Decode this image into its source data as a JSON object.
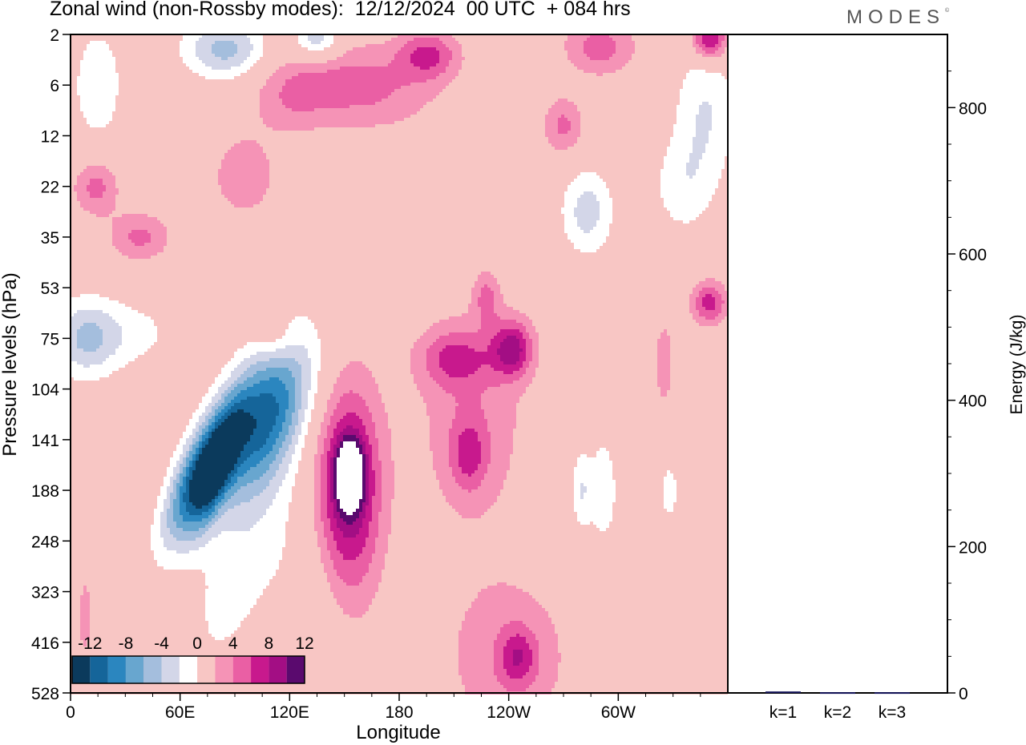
{
  "header": {
    "title": "Zonal wind (non-Rossby modes):  12/12/2024  00 UTC  + 084 hrs",
    "brand": "MODES",
    "brand_mark": "©"
  },
  "colors": {
    "neg": [
      "#0b3a5c",
      "#15659a",
      "#2b86bf",
      "#68a6cf",
      "#a4bedd",
      "#d3d6e8"
    ],
    "zero": "#ffffff",
    "pos": [
      "#f8c6c4",
      "#f593b6",
      "#ea5fa4",
      "#c8198d",
      "#a30e84",
      "#5a0a6e"
    ]
  },
  "chart_data": [
    {
      "type": "heatmap",
      "title": "Zonal wind (non-Rossby modes):  12/12/2024  00 UTC  + 084 hrs",
      "xlabel": "Longitude",
      "ylabel": "Pressure levels (hPa)",
      "x_ticks": [
        "0",
        "60E",
        "120E",
        "180",
        "120W",
        "60W"
      ],
      "x_tick_values": [
        0,
        60,
        120,
        180,
        240,
        300
      ],
      "x_range": [
        0,
        360
      ],
      "y_ticks": [
        "2",
        "6",
        "12",
        "22",
        "35",
        "53",
        "75",
        "104",
        "141",
        "188",
        "248",
        "323",
        "416",
        "528"
      ],
      "colorbar": {
        "labels": [
          "-12",
          "-8",
          "-4",
          "0",
          "4",
          "8",
          "12"
        ],
        "levels": [
          -14,
          -12,
          -10,
          -8,
          -6,
          -4,
          -2,
          2,
          4,
          6,
          8,
          10,
          12,
          14
        ]
      },
      "features": [
        {
          "lon": 105,
          "lev": 7.6,
          "lon_half": 16,
          "lev_half": 1.1,
          "peak": -13,
          "tilt": -0.45
        },
        {
          "lon": 68,
          "lev": 8.8,
          "lon_half": 9,
          "lev_half": 0.9,
          "peak": -11,
          "tilt": -0.5
        },
        {
          "lon": 80,
          "lev": 8.6,
          "lon_half": 7,
          "lev_half": 0.9,
          "peak": -9,
          "tilt": -0.4
        },
        {
          "lon": 92,
          "lev": 10.6,
          "lon_half": 15,
          "lev_half": 1.5,
          "peak": -3,
          "tilt": -0.4
        },
        {
          "lon": 130,
          "lev": 11.2,
          "lon_half": 14,
          "lev_half": 1.6,
          "peak": -2,
          "tilt": 0
        },
        {
          "lon": 8,
          "lev": 6.0,
          "lon_half": 13,
          "lev_half": 0.55,
          "peak": -6,
          "tilt": 0
        },
        {
          "lon": 85,
          "lev": 0.3,
          "lon_half": 16,
          "lev_half": 0.4,
          "peak": -7,
          "tilt": 0
        },
        {
          "lon": 135,
          "lev": 0.1,
          "lon_half": 9,
          "lev_half": 0.3,
          "peak": -6,
          "tilt": 0
        },
        {
          "lon": 283,
          "lev": 3.5,
          "lon_half": 10,
          "lev_half": 0.6,
          "peak": -5,
          "tilt": 0
        },
        {
          "lon": 348,
          "lev": 1.5,
          "lon_half": 12,
          "lev_half": 1.0,
          "peak": -4,
          "tilt": 0
        },
        {
          "lon": 335,
          "lev": 3.0,
          "lon_half": 12,
          "lev_half": 0.7,
          "peak": -3,
          "tilt": 0
        },
        {
          "lon": 292,
          "lev": 9.0,
          "lon_half": 5,
          "lev_half": 0.7,
          "peak": -4,
          "tilt": 0
        },
        {
          "lon": 280,
          "lev": 9.0,
          "lon_half": 4,
          "lev_half": 0.6,
          "peak": -4,
          "tilt": 0
        },
        {
          "lon": 328,
          "lev": 9.0,
          "lon_half": 4,
          "lev_half": 0.5,
          "peak": -3,
          "tilt": 0
        },
        {
          "lon": 35,
          "lev": 5.9,
          "lon_half": 18,
          "lev_half": 0.5,
          "peak": -2.5,
          "tilt": 0
        },
        {
          "lon": 15,
          "lev": 1.0,
          "lon_half": 12,
          "lev_half": 1.0,
          "peak": -3,
          "tilt": 0
        },
        {
          "lon": 152,
          "lev": 9.0,
          "lon_half": 13,
          "lev_half": 1.5,
          "peak": 10,
          "tilt": 0
        },
        {
          "lon": 153,
          "lev": 8.7,
          "lon_half": 5,
          "lev_half": 0.45,
          "peak": 13,
          "tilt": 0
        },
        {
          "lon": 210,
          "lev": 6.4,
          "lon_half": 14,
          "lev_half": 0.4,
          "peak": 5,
          "tilt": 0
        },
        {
          "lon": 242,
          "lev": 6.2,
          "lon_half": 8,
          "lev_half": 0.4,
          "peak": 8,
          "tilt": 0
        },
        {
          "lon": 228,
          "lev": 5.2,
          "lon_half": 5,
          "lev_half": 0.35,
          "peak": 4,
          "tilt": 0
        },
        {
          "lon": 220,
          "lev": 7.6,
          "lon_half": 22,
          "lev_half": 1.6,
          "peak": 3.5,
          "tilt": 0
        },
        {
          "lon": 218,
          "lev": 8.3,
          "lon_half": 7,
          "lev_half": 0.5,
          "peak": 4.5,
          "tilt": 0
        },
        {
          "lon": 240,
          "lev": 12.3,
          "lon_half": 26,
          "lev_half": 1.2,
          "peak": 3.5,
          "tilt": 0
        },
        {
          "lon": 245,
          "lev": 12.3,
          "lon_half": 7,
          "lev_half": 0.4,
          "peak": 5,
          "tilt": 0
        },
        {
          "lon": 155,
          "lev": 1.0,
          "lon_half": 30,
          "lev_half": 0.6,
          "peak": 5,
          "tilt": 0.35
        },
        {
          "lon": 196,
          "lev": 0.4,
          "lon_half": 12,
          "lev_half": 0.35,
          "peak": 6,
          "tilt": 0
        },
        {
          "lon": 290,
          "lev": 0.25,
          "lon_half": 14,
          "lev_half": 0.4,
          "peak": 5,
          "tilt": 0
        },
        {
          "lon": 350,
          "lev": 0.1,
          "lon_half": 7,
          "lev_half": 0.3,
          "peak": 9,
          "tilt": 0
        },
        {
          "lon": 350,
          "lev": 5.3,
          "lon_half": 7,
          "lev_half": 0.3,
          "peak": 7,
          "tilt": 0
        },
        {
          "lon": 14,
          "lev": 3.0,
          "lon_half": 9,
          "lev_half": 0.4,
          "peak": 5,
          "tilt": 0
        },
        {
          "lon": 38,
          "lev": 4.0,
          "lon_half": 12,
          "lev_half": 0.35,
          "peak": 4.5,
          "tilt": 0
        },
        {
          "lon": 95,
          "lev": 2.8,
          "lon_half": 13,
          "lev_half": 0.6,
          "peak": 3.5,
          "tilt": 0
        },
        {
          "lon": 270,
          "lev": 1.8,
          "lon_half": 8,
          "lev_half": 0.4,
          "peak": 4.5,
          "tilt": 0
        },
        {
          "lon": 120,
          "lev": 1.3,
          "lon_half": 14,
          "lev_half": 0.5,
          "peak": 2.5,
          "tilt": 0
        },
        {
          "lon": 112,
          "lev": 6.0,
          "lon_half": 8,
          "lev_half": 0.3,
          "peak": 2.5,
          "tilt": 0
        },
        {
          "lon": 8,
          "lev": 11.5,
          "lon_half": 4,
          "lev_half": 0.9,
          "peak": 2.5,
          "tilt": 0
        },
        {
          "lon": 325,
          "lev": 6.5,
          "lon_half": 6,
          "lev_half": 1.0,
          "peak": 2.5,
          "tilt": 0
        }
      ],
      "colorbar_placement": "inside-bottom-left"
    },
    {
      "type": "bar",
      "categories": [
        "k=1",
        "k=2",
        "k=3"
      ],
      "values": [
        2,
        1,
        1
      ],
      "ylabel": "Energy (J/kg)",
      "ylim": [
        0,
        900
      ],
      "y_ticks": [
        0,
        200,
        400,
        600,
        800
      ],
      "y_axis_side": "right"
    }
  ]
}
